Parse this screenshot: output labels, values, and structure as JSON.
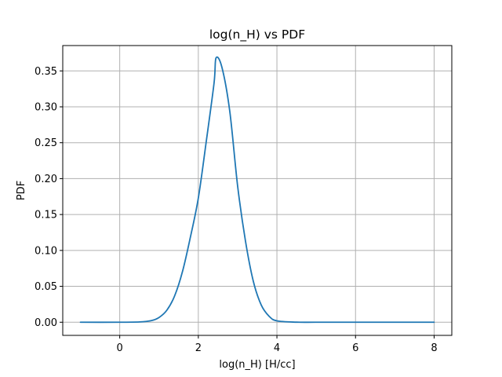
{
  "chart_data": {
    "type": "line",
    "title": "log(n_H) vs PDF",
    "xlabel": "log(n_H) [H/cc]",
    "ylabel": "PDF",
    "xlim": [
      -1.45,
      8.45
    ],
    "ylim": [
      -0.0183,
      0.3853
    ],
    "xticks": [
      0,
      2,
      4,
      6,
      8
    ],
    "xtick_labels": [
      "0",
      "2",
      "4",
      "6",
      "8"
    ],
    "yticks": [
      0.0,
      0.05,
      0.1,
      0.15,
      0.2,
      0.25,
      0.3,
      0.35
    ],
    "ytick_labels": [
      "0.00",
      "0.05",
      "0.10",
      "0.15",
      "0.20",
      "0.25",
      "0.30",
      "0.35"
    ],
    "grid": true,
    "series": [
      {
        "color": "#1f77b4",
        "x": [
          -1.0,
          0.0,
          0.5,
          0.8,
          1.0,
          1.2,
          1.4,
          1.6,
          1.8,
          2.0,
          2.2,
          2.4,
          2.45,
          2.6,
          2.8,
          3.0,
          3.2,
          3.4,
          3.6,
          3.8,
          4.0,
          4.5,
          5.0,
          6.0,
          7.0,
          8.0
        ],
        "y": [
          0.0,
          0.0,
          0.0004,
          0.0022,
          0.0066,
          0.0168,
          0.0371,
          0.0712,
          0.119,
          0.173,
          0.2511,
          0.333,
          0.368,
          0.3551,
          0.2938,
          0.1897,
          0.113,
          0.0569,
          0.0241,
          0.0084,
          0.0019,
          0.0001,
          0.0,
          0.0,
          0.0,
          0.0
        ]
      }
    ]
  }
}
